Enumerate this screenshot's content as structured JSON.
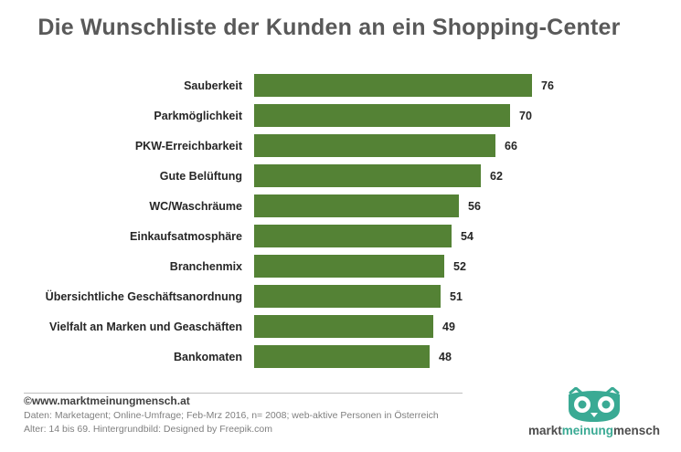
{
  "chart_data": {
    "type": "bar",
    "orientation": "horizontal",
    "title": "Die Wunschliste der Kunden an ein Shopping-Center",
    "categories": [
      "Sauberkeit",
      "Parkmöglichkeit",
      "PKW-Erreichbarkeit",
      "Gute Belüftung",
      "WC/Waschräume",
      "Einkaufsatmosphäre",
      "Branchenmix",
      "Übersichtliche Geschäftsanordnung",
      "Vielfalt an Marken und Geaschäften",
      "Bankomaten"
    ],
    "values": [
      76,
      70,
      66,
      62,
      56,
      54,
      52,
      51,
      49,
      48
    ],
    "xlim": [
      0,
      76
    ],
    "grid": false,
    "bar_color": "#548235"
  },
  "footer": {
    "website": "©www.marktmeinungmensch.at",
    "source_line1": "Daten: Marketagent; Online-Umfrage; Feb-Mrz 2016, n= 2008; web-aktive Personen in Österreich",
    "source_line2": "Alter: 14 bis 69. Hintergrundbild: Designed by Freepik.com"
  },
  "logo": {
    "word1": "markt",
    "word2": "meinung",
    "word3": "mensch",
    "icon": "owl-icon",
    "accent_color": "#3aaa94"
  }
}
